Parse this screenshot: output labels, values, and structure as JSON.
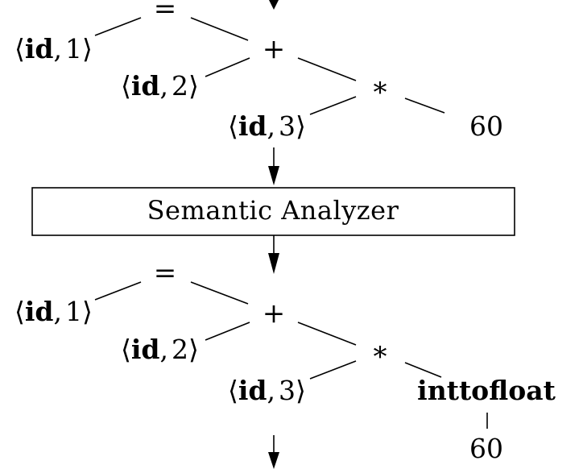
{
  "phase_box": {
    "label": "Semantic Analyzer"
  },
  "syntax_tree": {
    "assign_op": "=",
    "plus_op": "+",
    "times_op": "*",
    "id1": {
      "name": "id",
      "index": "1"
    },
    "id2": {
      "name": "id",
      "index": "2"
    },
    "id3": {
      "name": "id",
      "index": "3"
    },
    "constant": "60"
  },
  "semantic_tree": {
    "assign_op": "=",
    "plus_op": "+",
    "times_op": "*",
    "id1": {
      "name": "id",
      "index": "1"
    },
    "id2": {
      "name": "id",
      "index": "2"
    },
    "id3": {
      "name": "id",
      "index": "3"
    },
    "conversion": "inttofloat",
    "constant": "60"
  },
  "brackets": {
    "left": "⟨",
    "right": "⟩",
    "sep": ","
  }
}
